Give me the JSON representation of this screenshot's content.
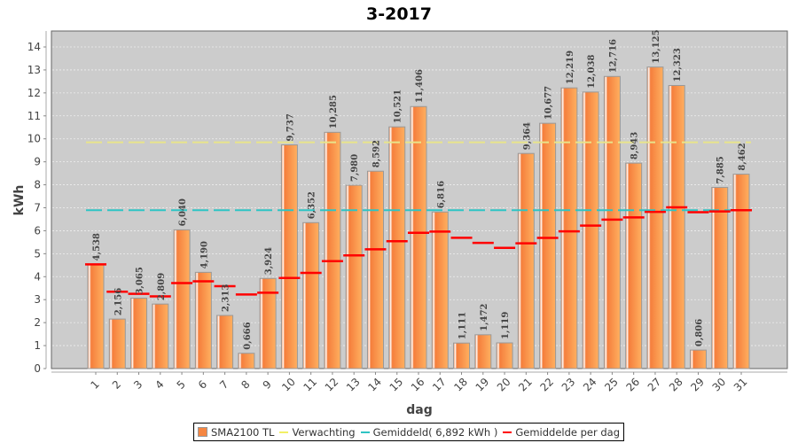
{
  "chart_data": {
    "type": "bar",
    "title": "3-2017",
    "xlabel": "dag",
    "ylabel": "kWh",
    "ylim": [
      0,
      14.7
    ],
    "yticks": [
      0,
      1,
      2,
      3,
      4,
      5,
      6,
      7,
      8,
      9,
      10,
      11,
      12,
      13,
      14
    ],
    "grid": true,
    "legend_position": "bottom",
    "categories": [
      "1",
      "2",
      "3",
      "4",
      "5",
      "6",
      "7",
      "8",
      "9",
      "10",
      "11",
      "12",
      "13",
      "14",
      "15",
      "16",
      "17",
      "18",
      "19",
      "20",
      "21",
      "22",
      "23",
      "24",
      "25",
      "26",
      "27",
      "28",
      "29",
      "30",
      "31"
    ],
    "series": [
      {
        "name": "SMA2100 TL",
        "type": "bar",
        "color": "#f58642",
        "values": [
          4.538,
          2.156,
          3.065,
          2.809,
          6.04,
          4.19,
          2.313,
          0.666,
          3.924,
          9.737,
          6.352,
          10.285,
          7.98,
          8.592,
          10.521,
          11.406,
          6.816,
          1.111,
          1.472,
          1.119,
          9.364,
          10.677,
          12.219,
          12.038,
          12.716,
          8.943,
          13.125,
          12.323,
          0.806,
          7.885,
          8.462
        ],
        "labels": [
          "4,538",
          "2,156",
          "3,065",
          "2,809",
          "6,040",
          "4,190",
          "2,313",
          "0,666",
          "3,924",
          "9,737",
          "6,352",
          "10,285",
          "7,980",
          "8,592",
          "10,521",
          "11,406",
          "6,816",
          "1,111",
          "1,472",
          "1,119",
          "9,364",
          "10,677",
          "12,219",
          "12,038",
          "12,716",
          "8,943",
          "13,125",
          "12,323",
          "0,806",
          "7,885",
          "8,462"
        ]
      },
      {
        "name": "Verwachting",
        "type": "hline",
        "color": "#e8e48a",
        "value": 9.85
      },
      {
        "name": "Gemiddeld( 6,892 kWh )",
        "type": "hline",
        "color": "#2ec4c4",
        "value": 6.892
      },
      {
        "name": "Gemiddelde per dag",
        "type": "step",
        "color": "#ff0000",
        "values": [
          4.538,
          3.347,
          3.253,
          3.142,
          3.722,
          3.8,
          3.588,
          3.223,
          3.301,
          3.945,
          4.164,
          4.674,
          4.928,
          5.19,
          5.545,
          5.911,
          5.964,
          5.695,
          5.473,
          5.256,
          5.452,
          5.689,
          5.973,
          6.226,
          6.486,
          6.581,
          6.823,
          7.019,
          6.805,
          6.841,
          6.892
        ]
      }
    ]
  },
  "legend": {
    "items": [
      {
        "label": "SMA2100 TL",
        "color": "#f58642"
      },
      {
        "label": "Verwachting",
        "color": "#f2f066"
      },
      {
        "label": "Gemiddeld( 6,892 kWh )",
        "color": "#2ec4c4"
      },
      {
        "label": "Gemiddelde per dag",
        "color": "#ff0000"
      }
    ]
  }
}
